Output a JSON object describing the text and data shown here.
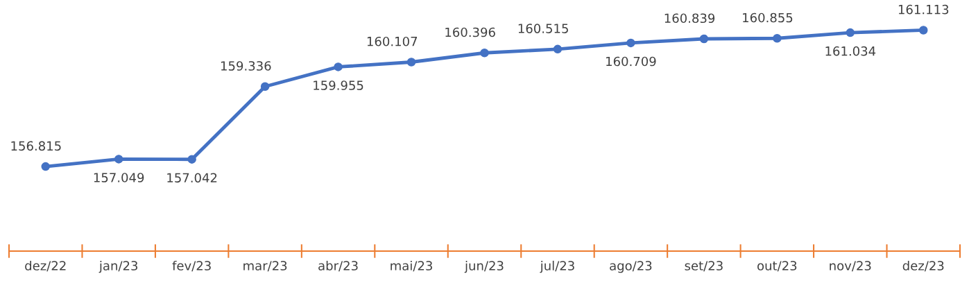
{
  "chart_data": {
    "type": "line",
    "categories": [
      "dez/22",
      "jan/23",
      "fev/23",
      "mar/23",
      "abr/23",
      "mai/23",
      "jun/23",
      "jul/23",
      "ago/23",
      "set/23",
      "out/23",
      "nov/23",
      "dez/23"
    ],
    "series": [
      {
        "color": "#4472c4",
        "values": [
          156.815,
          157.049,
          157.042,
          159.336,
          159.955,
          160.107,
          160.396,
          160.515,
          160.709,
          160.839,
          160.855,
          161.034,
          161.113
        ]
      }
    ],
    "data_labels": true,
    "marker": "circle",
    "line_style": "solid",
    "grid": false,
    "legend": false
  }
}
